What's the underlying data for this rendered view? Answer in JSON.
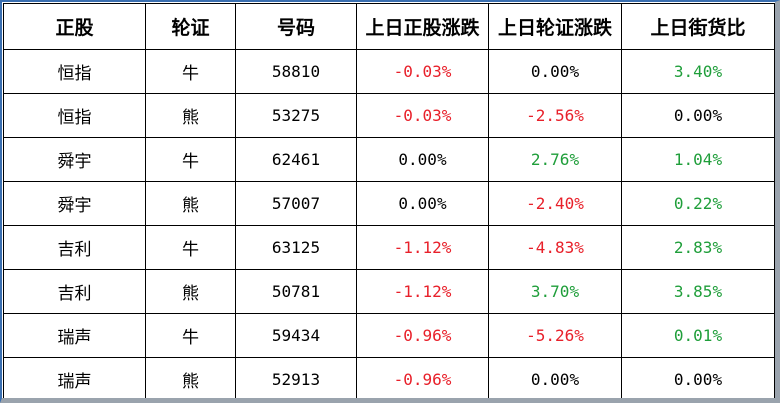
{
  "columns": [
    "正股",
    "轮证",
    "号码",
    "上日正股涨跌",
    "上日轮证涨跌",
    "上日街货比"
  ],
  "rows": [
    {
      "stock": "恒指",
      "warrant": "牛",
      "code": "58810",
      "stock_change": "-0.03%",
      "warrant_change": "0.00%",
      "street_ratio": "3.40%"
    },
    {
      "stock": "恒指",
      "warrant": "熊",
      "code": "53275",
      "stock_change": "-0.03%",
      "warrant_change": "-2.56%",
      "street_ratio": "0.00%"
    },
    {
      "stock": "舜宇",
      "warrant": "牛",
      "code": "62461",
      "stock_change": "0.00%",
      "warrant_change": "2.76%",
      "street_ratio": "1.04%"
    },
    {
      "stock": "舜宇",
      "warrant": "熊",
      "code": "57007",
      "stock_change": "0.00%",
      "warrant_change": "-2.40%",
      "street_ratio": "0.22%"
    },
    {
      "stock": "吉利",
      "warrant": "牛",
      "code": "63125",
      "stock_change": "-1.12%",
      "warrant_change": "-4.83%",
      "street_ratio": "2.83%"
    },
    {
      "stock": "吉利",
      "warrant": "熊",
      "code": "50781",
      "stock_change": "-1.12%",
      "warrant_change": "3.70%",
      "street_ratio": "3.85%"
    },
    {
      "stock": "瑞声",
      "warrant": "牛",
      "code": "59434",
      "stock_change": "-0.96%",
      "warrant_change": "-5.26%",
      "street_ratio": "0.01%"
    },
    {
      "stock": "瑞声",
      "warrant": "熊",
      "code": "52913",
      "stock_change": "-0.96%",
      "warrant_change": "0.00%",
      "street_ratio": "0.00%"
    }
  ],
  "colors": {
    "negative": "#e8202a",
    "positive": "#1f9e3a",
    "neutral": "#000000",
    "frame": "#3a6fb0"
  }
}
